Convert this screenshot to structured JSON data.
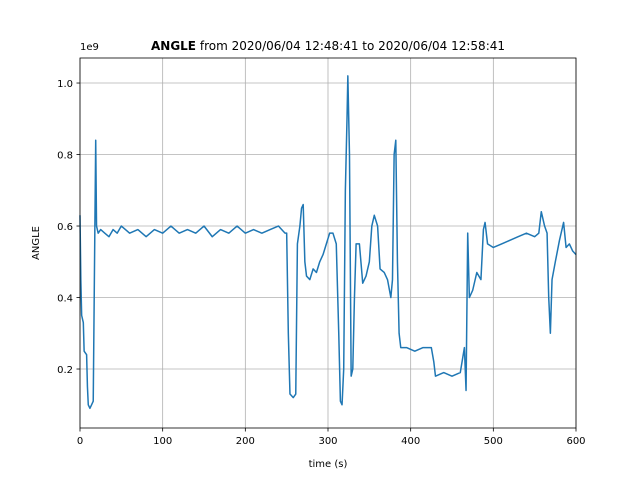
{
  "chart_data": {
    "type": "line",
    "title_bold": "ANGLE",
    "title_rest": "from 2020/06/04 12:48:41 to 2020/06/04 12:58:41",
    "offset_text": "1e9",
    "x_label": "time (s)",
    "y_label": "ANGLE",
    "color": "#1f77b4",
    "grid": true,
    "xlim": [
      0,
      600
    ],
    "ylim": [
      0.035,
      1.07
    ],
    "xticks": [
      0,
      100,
      200,
      300,
      400,
      500,
      600
    ],
    "yticks": [
      0.2,
      0.4,
      0.6,
      0.8,
      {
        "value": 1,
        "label": "1.0"
      }
    ],
    "x": [
      0,
      1,
      2,
      4,
      5,
      8,
      9,
      10,
      12,
      14,
      16,
      18,
      19,
      20,
      22,
      25,
      30,
      35,
      40,
      45,
      50,
      60,
      70,
      80,
      90,
      100,
      110,
      120,
      130,
      140,
      150,
      160,
      170,
      180,
      190,
      200,
      210,
      220,
      230,
      240,
      248,
      250,
      252,
      254,
      258,
      261,
      263,
      266,
      268,
      270,
      272,
      274,
      278,
      282,
      286,
      290,
      294,
      298,
      302,
      306,
      310,
      313,
      315,
      317,
      319,
      321,
      323,
      324,
      326,
      328,
      330,
      332,
      334,
      338,
      342,
      346,
      350,
      353,
      356,
      360,
      363,
      368,
      372,
      376,
      378,
      380,
      382,
      384,
      386,
      388,
      395,
      405,
      415,
      425,
      428,
      430,
      440,
      450,
      460,
      465,
      467,
      469,
      471,
      475,
      480,
      485,
      488,
      490,
      493,
      500,
      510,
      520,
      530,
      540,
      550,
      555,
      558,
      562,
      565,
      567,
      569,
      571,
      575,
      580,
      585,
      588,
      592,
      596,
      600
    ],
    "values": [
      0.63,
      0.45,
      0.35,
      0.33,
      0.25,
      0.24,
      0.15,
      0.1,
      0.09,
      0.1,
      0.11,
      0.6,
      0.84,
      0.6,
      0.58,
      0.59,
      0.58,
      0.57,
      0.59,
      0.58,
      0.6,
      0.58,
      0.59,
      0.57,
      0.59,
      0.58,
      0.6,
      0.58,
      0.59,
      0.58,
      0.6,
      0.57,
      0.59,
      0.58,
      0.6,
      0.58,
      0.59,
      0.58,
      0.59,
      0.6,
      0.58,
      0.58,
      0.3,
      0.13,
      0.12,
      0.13,
      0.55,
      0.6,
      0.65,
      0.66,
      0.5,
      0.46,
      0.45,
      0.48,
      0.47,
      0.5,
      0.52,
      0.55,
      0.58,
      0.58,
      0.55,
      0.3,
      0.11,
      0.1,
      0.2,
      0.7,
      0.9,
      1.02,
      0.8,
      0.18,
      0.2,
      0.4,
      0.55,
      0.55,
      0.44,
      0.46,
      0.5,
      0.6,
      0.63,
      0.6,
      0.48,
      0.47,
      0.45,
      0.4,
      0.45,
      0.8,
      0.84,
      0.5,
      0.3,
      0.26,
      0.26,
      0.25,
      0.26,
      0.26,
      0.22,
      0.18,
      0.19,
      0.18,
      0.19,
      0.26,
      0.14,
      0.58,
      0.4,
      0.42,
      0.47,
      0.45,
      0.59,
      0.61,
      0.55,
      0.54,
      0.55,
      0.56,
      0.57,
      0.58,
      0.57,
      0.58,
      0.64,
      0.6,
      0.58,
      0.4,
      0.3,
      0.45,
      0.5,
      0.56,
      0.61,
      0.54,
      0.55,
      0.53,
      0.52
    ]
  }
}
